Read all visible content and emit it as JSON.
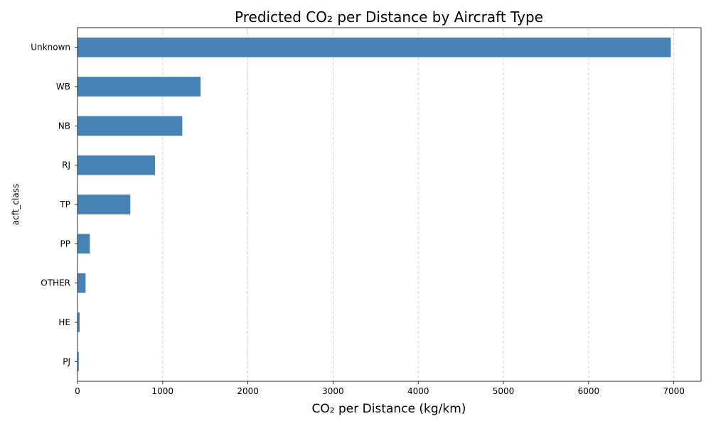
{
  "chart_data": {
    "type": "bar",
    "orientation": "horizontal",
    "title": "Predicted CO₂ per Distance by Aircraft Type",
    "xlabel": "CO₂ per Distance (kg/km)",
    "ylabel": "acft_class",
    "categories": [
      "Unknown",
      "WB",
      "NB",
      "RJ",
      "TP",
      "PP",
      "OTHER",
      "HE",
      "PJ"
    ],
    "values": [
      6965,
      1445,
      1230,
      910,
      620,
      145,
      95,
      25,
      15
    ],
    "xlim": [
      0,
      7320
    ],
    "xticks": [
      0,
      1000,
      2000,
      3000,
      4000,
      5000,
      6000,
      7000
    ],
    "grid": "x-dashed",
    "bar_color": "#4682b4"
  }
}
